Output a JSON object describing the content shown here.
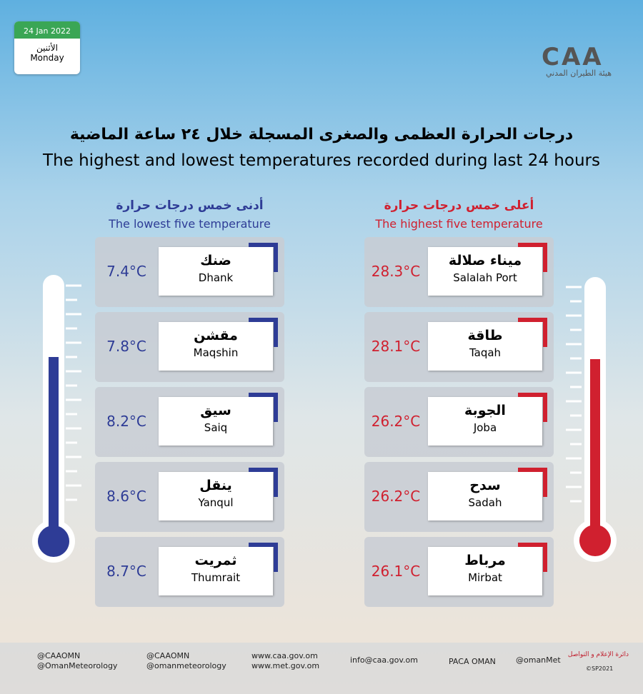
{
  "header": {
    "date": "24 Jan 2022",
    "day_ar": "الأثنين",
    "day_en": "Monday",
    "logo": "CAA",
    "logo_ar": "هيئة الطيران المدني"
  },
  "title_ar": "درجات الحرارة العظمى والصغرى المسجلة خلال ٢٤ ساعة الماضية",
  "title_en": "The highest and lowest temperatures recorded during last 24 hours",
  "lowest": {
    "title_ar": "أدنى خمس درجات حرارة",
    "title_en": "The lowest five temperature",
    "rows": [
      {
        "ar": "ضنك",
        "en": "Dhank",
        "temp": "7.4°C"
      },
      {
        "ar": "مقشن",
        "en": "Maqshin",
        "temp": "7.8°C"
      },
      {
        "ar": "سيق",
        "en": "Saiq",
        "temp": "8.2°C"
      },
      {
        "ar": "ينقل",
        "en": "Yanqul",
        "temp": "8.6°C"
      },
      {
        "ar": "ثمريت",
        "en": "Thumrait",
        "temp": "8.7°C"
      }
    ]
  },
  "highest": {
    "title_ar": "أعلى خمس درجات حرارة",
    "title_en": "The highest five temperature",
    "rows": [
      {
        "ar": "ميناء صلالة",
        "en": "Salalah Port",
        "temp": "28.3°C"
      },
      {
        "ar": "طاقة",
        "en": "Taqah",
        "temp": "28.1°C"
      },
      {
        "ar": "الجوبة",
        "en": "Joba",
        "temp": "26.2°C"
      },
      {
        "ar": "سدح",
        "en": "Sadah",
        "temp": "26.2°C"
      },
      {
        "ar": "مرباط",
        "en": "Mirbat",
        "temp": "26.1°C"
      }
    ]
  },
  "footer": {
    "twitter": [
      "@CAAOMN",
      "@OmanMeteorology"
    ],
    "instagram": [
      "@CAAOMN",
      "@omanmeteorology"
    ],
    "web": [
      "www.caa.gov.om",
      "www.met.gov.om"
    ],
    "email": "info@caa.gov.om",
    "linkedin": "PACA OMAN",
    "facebook": "@omanMet",
    "dept": "دائرة الإعلام و التواصل",
    "copy": "©SP2021"
  }
}
